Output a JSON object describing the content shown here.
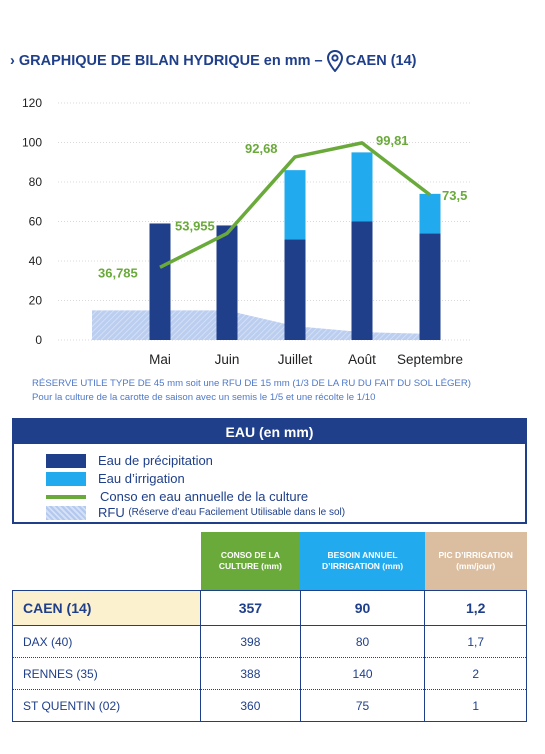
{
  "title": "GRAPHIQUE DE BILAN HYDRIQUE en mm –",
  "title_location": "CAEN (14)",
  "chart_data": {
    "type": "bar",
    "categories": [
      "Mai",
      "Juin",
      "Juillet",
      "Août",
      "Septembre"
    ],
    "ylim": [
      0,
      120
    ],
    "yticks": [
      "0",
      "20",
      "40",
      "60",
      "80",
      "100",
      "120"
    ],
    "series": [
      {
        "name": "Eau de précipitation",
        "values": [
          59,
          58,
          51,
          60,
          54
        ],
        "color": "#1f3f8a"
      },
      {
        "name": "Eau d’irrigation",
        "values": [
          0,
          0,
          35,
          35,
          20
        ],
        "color": "#22aaee"
      },
      {
        "name": "RFU",
        "values": [
          15,
          15,
          7,
          4,
          3
        ],
        "color": "#b3c8ee"
      },
      {
        "name": "Conso en eau annuelle de la culture",
        "values": [
          36.785,
          53.955,
          92.68,
          99.81,
          73.5
        ],
        "labels": [
          "36,785",
          "53,955",
          "92,68",
          "99,81",
          "73,5"
        ],
        "color": "#6aaa3a"
      }
    ]
  },
  "notes": [
    "RÉSERVE UTILE TYPE DE 45 mm soit une RFU DE 15 mm (1/3 DE LA RU DU FAIT DU SOL LÉGER)",
    "Pour la culture de la carotte de saison avec un semis le 1/5 et une récolte le 1/10"
  ],
  "legend": {
    "header": "EAU (en mm)",
    "items": [
      "Eau de précipitation",
      "Eau d’irrigation",
      "Conso en eau annuelle de la culture",
      "RFU"
    ],
    "rfu_detail": "(Réserve d’eau Facilement Utilisable dans le sol)"
  },
  "table": {
    "headers": [
      {
        "label": "CONSO DE LA CULTURE (mm)",
        "color": "#6aaa3a"
      },
      {
        "label": "BESOIN ANNUEL D’IRRIGATION (mm)",
        "color": "#22aaee"
      },
      {
        "label": "PIC D’IRRIGATION (mm/jour)",
        "color": "#dbbd9f"
      }
    ],
    "rows": [
      {
        "name": "CAEN (14)",
        "conso": "357",
        "besoin": "90",
        "pic": "1,2"
      },
      {
        "name": "DAX (40)",
        "conso": "398",
        "besoin": "80",
        "pic": "1,7"
      },
      {
        "name": "RENNES (35)",
        "conso": "388",
        "besoin": "140",
        "pic": "2"
      },
      {
        "name": "ST QUENTIN (02)",
        "conso": "360",
        "besoin": "75",
        "pic": "1"
      }
    ]
  },
  "icons": {
    "title_prefix": "chevron-right-icon",
    "location": "map-pin-icon"
  }
}
